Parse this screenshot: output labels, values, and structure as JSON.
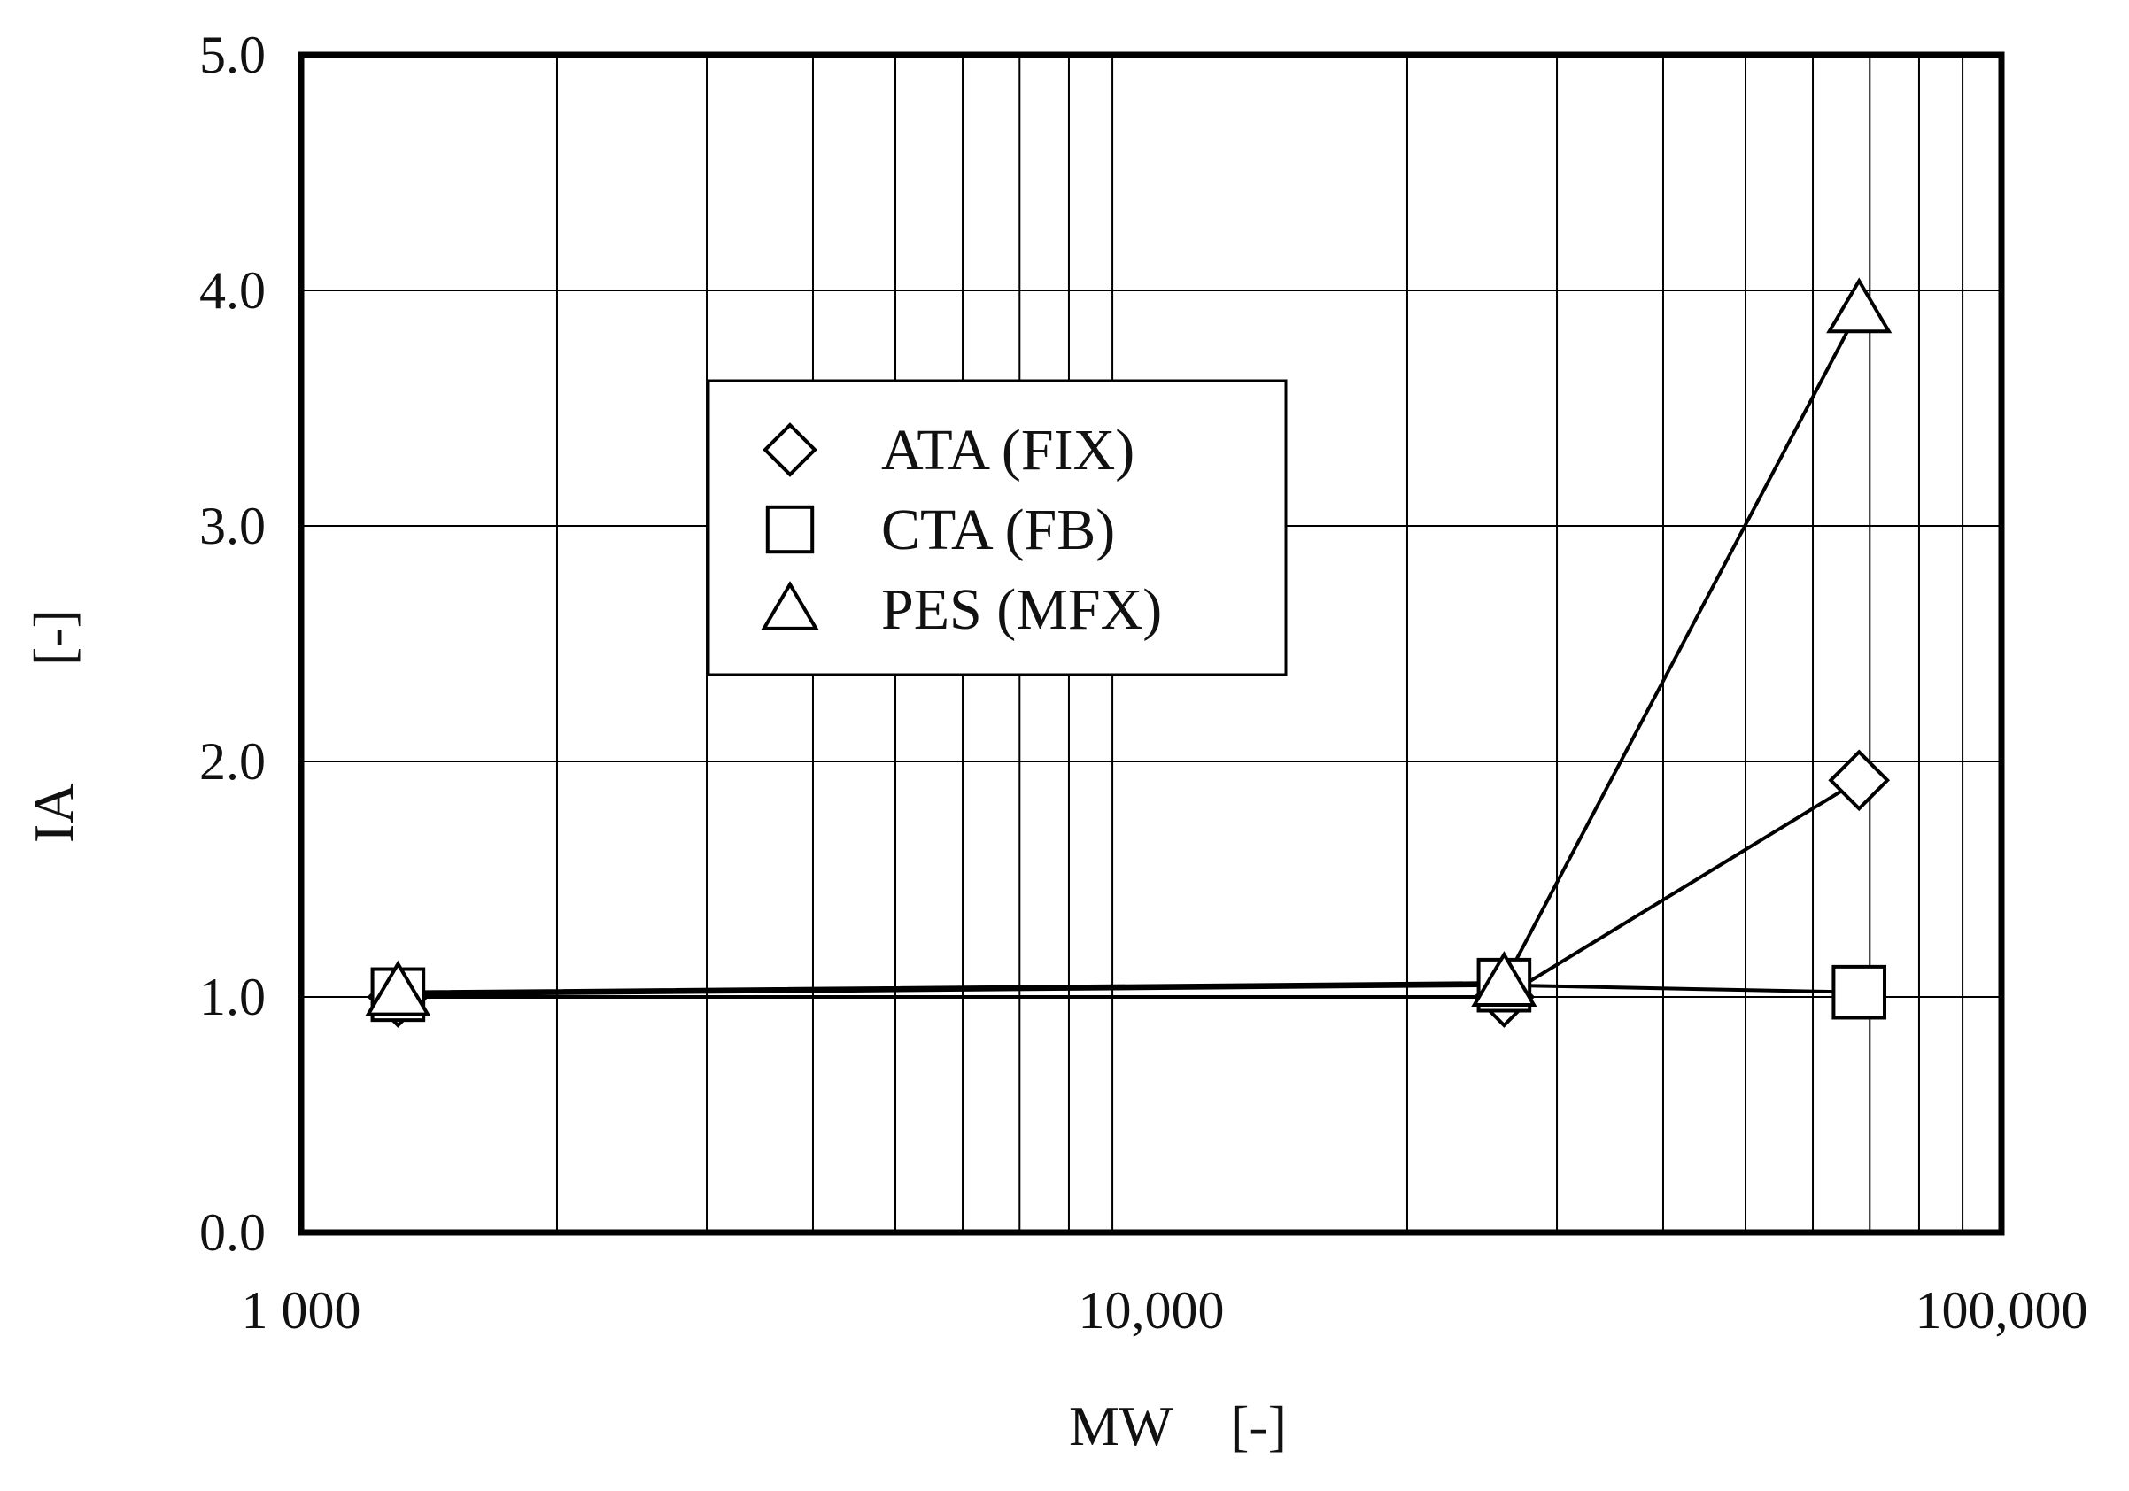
{
  "chart_data": {
    "type": "scatter",
    "xlabel": "MW",
    "xunit": "[-]",
    "ylabel": "IA",
    "yunit": "[-]",
    "xscale": "log",
    "xlim": [
      1000,
      100000
    ],
    "ylim": [
      0,
      5
    ],
    "grid": true,
    "xticks": [
      {
        "value": 1000,
        "label": "1 000"
      },
      {
        "value": 10000,
        "label": "10,000"
      },
      {
        "value": 100000,
        "label": "100,000"
      }
    ],
    "yticks": [
      {
        "value": 0,
        "label": "0.0"
      },
      {
        "value": 1,
        "label": "1.0"
      },
      {
        "value": 2,
        "label": "2.0"
      },
      {
        "value": 3,
        "label": "3.0"
      },
      {
        "value": 4,
        "label": "4.0"
      },
      {
        "value": 5,
        "label": "5.0"
      }
    ],
    "legend_position": "center-left",
    "series": [
      {
        "name": "ATA (FIX)",
        "marker": "diamond",
        "x": [
          1300,
          26000,
          68000
        ],
        "y": [
          1.0,
          1.0,
          1.92
        ]
      },
      {
        "name": "CTA (FB)",
        "marker": "square",
        "x": [
          1300,
          26000,
          68000
        ],
        "y": [
          1.01,
          1.05,
          1.02
        ]
      },
      {
        "name": "PES (MFX)",
        "marker": "triangle",
        "x": [
          1300,
          26000,
          68000
        ],
        "y": [
          1.02,
          1.06,
          3.92
        ]
      }
    ]
  }
}
